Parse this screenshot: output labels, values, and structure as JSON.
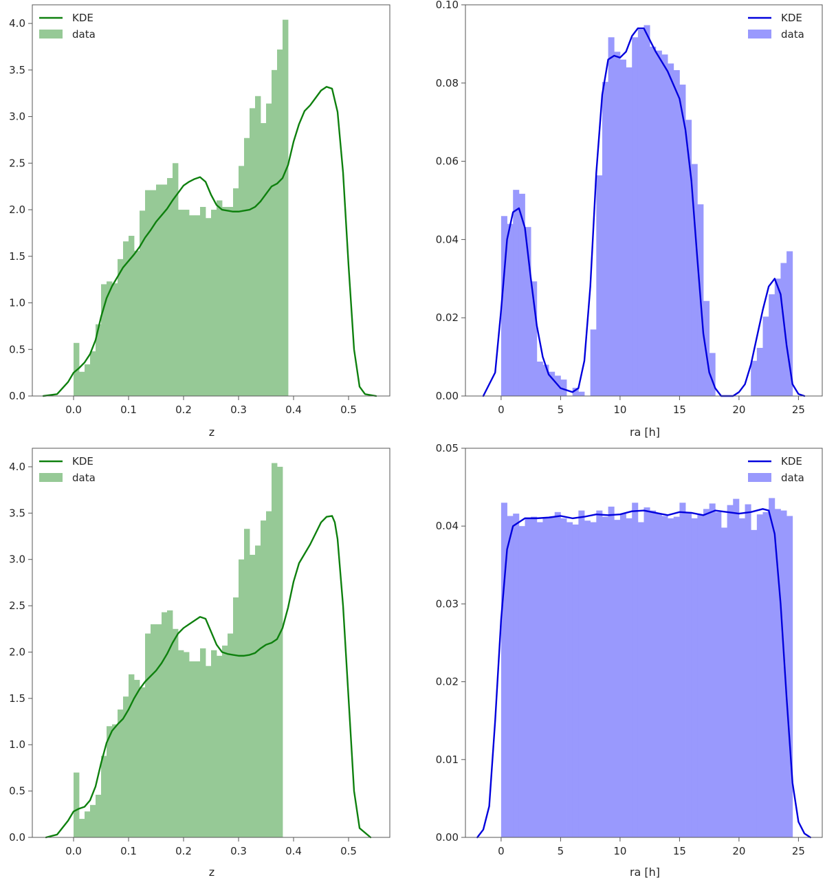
{
  "chart_data": [
    {
      "id": "top-left",
      "type": "bar",
      "xlabel": "z",
      "ylabel": "",
      "xlim": [
        -0.075,
        0.575
      ],
      "ylim": [
        0,
        4.2
      ],
      "xticks": [
        0.0,
        0.1,
        0.2,
        0.3,
        0.4,
        0.5
      ],
      "xtick_labels": [
        "0.0",
        "0.1",
        "0.2",
        "0.3",
        "0.4",
        "0.5"
      ],
      "yticks": [
        0.0,
        0.5,
        1.0,
        1.5,
        2.0,
        2.5,
        3.0,
        3.5,
        4.0
      ],
      "ytick_labels": [
        "0.0",
        "0.5",
        "1.0",
        "1.5",
        "2.0",
        "2.5",
        "3.0",
        "3.5",
        "4.0"
      ],
      "legend": {
        "position": "top-left",
        "entries": [
          {
            "label": "KDE",
            "kind": "line"
          },
          {
            "label": "data",
            "kind": "patch"
          }
        ]
      },
      "colors": {
        "bar": "#96c996",
        "line": "#0e800e"
      },
      "hist": {
        "bin_start": 0.0,
        "bin_width": 0.01,
        "values": [
          0.57,
          0.26,
          0.34,
          0.48,
          0.77,
          1.2,
          1.23,
          1.21,
          1.47,
          1.66,
          1.72,
          1.56,
          1.99,
          2.21,
          2.21,
          2.27,
          2.27,
          2.34,
          2.5,
          2.0,
          2.0,
          1.94,
          1.94,
          2.03,
          1.91,
          2.0,
          2.1,
          2.03,
          2.03,
          2.23,
          2.47,
          2.77,
          3.09,
          3.22,
          2.93,
          3.14,
          3.5,
          3.72,
          4.04,
          0.0
        ]
      },
      "series": [
        {
          "name": "KDE",
          "x": [
            -0.055,
            -0.03,
            -0.01,
            0.0,
            0.01,
            0.02,
            0.03,
            0.04,
            0.05,
            0.06,
            0.07,
            0.08,
            0.09,
            0.1,
            0.11,
            0.12,
            0.13,
            0.14,
            0.15,
            0.16,
            0.17,
            0.18,
            0.19,
            0.2,
            0.21,
            0.22,
            0.23,
            0.24,
            0.25,
            0.26,
            0.27,
            0.28,
            0.29,
            0.3,
            0.31,
            0.32,
            0.33,
            0.34,
            0.35,
            0.36,
            0.37,
            0.38,
            0.39,
            0.4,
            0.41,
            0.42,
            0.43,
            0.44,
            0.45,
            0.46,
            0.47,
            0.48,
            0.49,
            0.5,
            0.51,
            0.52,
            0.53,
            0.55
          ],
          "y": [
            0.0,
            0.02,
            0.15,
            0.25,
            0.3,
            0.36,
            0.45,
            0.6,
            0.85,
            1.05,
            1.18,
            1.28,
            1.38,
            1.45,
            1.52,
            1.6,
            1.7,
            1.78,
            1.87,
            1.94,
            2.01,
            2.1,
            2.18,
            2.26,
            2.3,
            2.33,
            2.35,
            2.3,
            2.16,
            2.05,
            2.0,
            1.99,
            1.98,
            1.98,
            1.99,
            2.0,
            2.03,
            2.09,
            2.17,
            2.25,
            2.28,
            2.34,
            2.48,
            2.73,
            2.92,
            3.06,
            3.12,
            3.2,
            3.28,
            3.32,
            3.3,
            3.05,
            2.4,
            1.4,
            0.5,
            0.1,
            0.02,
            0.0
          ]
        }
      ]
    },
    {
      "id": "top-right",
      "type": "bar",
      "xlabel": "ra [h]",
      "ylabel": "",
      "xlim": [
        -3.0,
        27.0
      ],
      "ylim": [
        0,
        0.1
      ],
      "xticks": [
        0,
        5,
        10,
        15,
        20,
        25
      ],
      "xtick_labels": [
        "0",
        "5",
        "10",
        "15",
        "20",
        "25"
      ],
      "yticks": [
        0.0,
        0.02,
        0.04,
        0.06,
        0.08,
        0.1
      ],
      "ytick_labels": [
        "0.00",
        "0.02",
        "0.04",
        "0.06",
        "0.08",
        "0.10"
      ],
      "legend": {
        "position": "top-right",
        "entries": [
          {
            "label": "KDE",
            "kind": "line"
          },
          {
            "label": "data",
            "kind": "patch"
          }
        ]
      },
      "colors": {
        "bar": "#9999fd",
        "line": "#0000dd"
      },
      "hist": {
        "bin_start": 0.0,
        "bin_width": 0.5,
        "values": [
          0.046,
          0.044,
          0.0527,
          0.0517,
          0.0432,
          0.0293,
          0.0088,
          0.008,
          0.0062,
          0.0052,
          0.0042,
          0.0,
          0.0021,
          0.0011,
          0.0,
          0.017,
          0.0564,
          0.0803,
          0.0917,
          0.088,
          0.086,
          0.084,
          0.0917,
          0.0937,
          0.0948,
          0.0893,
          0.0883,
          0.0873,
          0.085,
          0.0833,
          0.0796,
          0.0706,
          0.0593,
          0.049,
          0.0243,
          0.011,
          0.0,
          0.0,
          0.0,
          0.0,
          0.0,
          0.0,
          0.009,
          0.0123,
          0.0203,
          0.026,
          0.03,
          0.034,
          0.037,
          0.0
        ]
      },
      "series": [
        {
          "name": "KDE",
          "x": [
            -1.5,
            -0.5,
            0.0,
            0.5,
            1.0,
            1.5,
            2.0,
            2.5,
            3.0,
            3.5,
            4.0,
            5.0,
            6.0,
            6.5,
            7.0,
            7.5,
            8.0,
            8.5,
            9.0,
            9.5,
            10.0,
            10.5,
            11.0,
            11.5,
            12.0,
            12.5,
            13.0,
            14.0,
            15.0,
            15.5,
            16.0,
            16.5,
            17.0,
            17.5,
            18.0,
            18.5,
            19.0,
            19.5,
            20.0,
            20.5,
            21.0,
            21.5,
            22.0,
            22.5,
            23.0,
            23.5,
            24.0,
            24.5,
            25.0,
            25.5
          ],
          "y": [
            0.0,
            0.006,
            0.022,
            0.04,
            0.047,
            0.048,
            0.043,
            0.03,
            0.018,
            0.01,
            0.0055,
            0.002,
            0.001,
            0.002,
            0.009,
            0.028,
            0.057,
            0.077,
            0.086,
            0.087,
            0.0865,
            0.088,
            0.092,
            0.094,
            0.094,
            0.091,
            0.088,
            0.083,
            0.076,
            0.068,
            0.055,
            0.035,
            0.016,
            0.006,
            0.002,
            0.0,
            0.0,
            0.0,
            0.001,
            0.003,
            0.008,
            0.015,
            0.022,
            0.028,
            0.03,
            0.026,
            0.013,
            0.003,
            0.0005,
            0.0
          ]
        }
      ]
    },
    {
      "id": "bottom-left",
      "type": "bar",
      "xlabel": "z",
      "ylabel": "",
      "xlim": [
        -0.075,
        0.575
      ],
      "ylim": [
        0,
        4.2
      ],
      "xticks": [
        0.0,
        0.1,
        0.2,
        0.3,
        0.4,
        0.5
      ],
      "xtick_labels": [
        "0.0",
        "0.1",
        "0.2",
        "0.3",
        "0.4",
        "0.5"
      ],
      "yticks": [
        0.0,
        0.5,
        1.0,
        1.5,
        2.0,
        2.5,
        3.0,
        3.5,
        4.0
      ],
      "ytick_labels": [
        "0.0",
        "0.5",
        "1.0",
        "1.5",
        "2.0",
        "2.5",
        "3.0",
        "3.5",
        "4.0"
      ],
      "legend": {
        "position": "top-left",
        "entries": [
          {
            "label": "KDE",
            "kind": "line"
          },
          {
            "label": "data",
            "kind": "patch"
          }
        ]
      },
      "colors": {
        "bar": "#96c996",
        "line": "#0e800e"
      },
      "hist": {
        "bin_start": 0.0,
        "bin_width": 0.01,
        "values": [
          0.7,
          0.2,
          0.28,
          0.35,
          0.46,
          0.88,
          1.2,
          1.22,
          1.38,
          1.52,
          1.76,
          1.7,
          1.62,
          2.2,
          2.3,
          2.3,
          2.43,
          2.45,
          2.25,
          2.02,
          2.0,
          1.9,
          1.9,
          2.04,
          1.85,
          2.02,
          1.96,
          2.07,
          2.2,
          2.59,
          3.0,
          3.33,
          3.05,
          3.15,
          3.42,
          3.52,
          4.04,
          4.0,
          0.0,
          0.0
        ]
      },
      "series": [
        {
          "name": "KDE",
          "x": [
            -0.05,
            -0.03,
            -0.01,
            0.0,
            0.01,
            0.02,
            0.03,
            0.04,
            0.05,
            0.06,
            0.07,
            0.08,
            0.09,
            0.1,
            0.11,
            0.12,
            0.13,
            0.14,
            0.15,
            0.16,
            0.17,
            0.18,
            0.19,
            0.2,
            0.21,
            0.22,
            0.23,
            0.24,
            0.25,
            0.26,
            0.27,
            0.28,
            0.29,
            0.3,
            0.31,
            0.32,
            0.33,
            0.34,
            0.35,
            0.36,
            0.37,
            0.38,
            0.39,
            0.4,
            0.41,
            0.42,
            0.43,
            0.44,
            0.45,
            0.46,
            0.47,
            0.475,
            0.48,
            0.49,
            0.5,
            0.51,
            0.52,
            0.54
          ],
          "y": [
            0.0,
            0.03,
            0.18,
            0.28,
            0.31,
            0.33,
            0.4,
            0.55,
            0.8,
            1.02,
            1.15,
            1.22,
            1.28,
            1.38,
            1.5,
            1.6,
            1.68,
            1.74,
            1.8,
            1.88,
            1.98,
            2.1,
            2.2,
            2.26,
            2.3,
            2.34,
            2.38,
            2.36,
            2.22,
            2.08,
            2.0,
            1.98,
            1.97,
            1.96,
            1.96,
            1.97,
            1.99,
            2.04,
            2.08,
            2.1,
            2.14,
            2.26,
            2.48,
            2.76,
            2.96,
            3.06,
            3.16,
            3.28,
            3.4,
            3.46,
            3.47,
            3.4,
            3.22,
            2.5,
            1.5,
            0.5,
            0.1,
            0.0
          ]
        }
      ]
    },
    {
      "id": "bottom-right",
      "type": "bar",
      "xlabel": "ra [h]",
      "ylabel": "",
      "xlim": [
        -3.0,
        27.0
      ],
      "ylim": [
        0,
        0.05
      ],
      "xticks": [
        0,
        5,
        10,
        15,
        20,
        25
      ],
      "xtick_labels": [
        "0",
        "5",
        "10",
        "15",
        "20",
        "25"
      ],
      "yticks": [
        0.0,
        0.01,
        0.02,
        0.03,
        0.04,
        0.05
      ],
      "ytick_labels": [
        "0.00",
        "0.01",
        "0.02",
        "0.03",
        "0.04",
        "0.05"
      ],
      "legend": {
        "position": "top-right",
        "entries": [
          {
            "label": "KDE",
            "kind": "line"
          },
          {
            "label": "data",
            "kind": "patch"
          }
        ]
      },
      "colors": {
        "bar": "#9999fd",
        "line": "#0000dd"
      },
      "hist": {
        "bin_start": 0.0,
        "bin_width": 0.5,
        "values": [
          0.043,
          0.0413,
          0.0416,
          0.04,
          0.041,
          0.0412,
          0.0405,
          0.041,
          0.0412,
          0.0418,
          0.041,
          0.0405,
          0.0402,
          0.042,
          0.0407,
          0.0405,
          0.042,
          0.0412,
          0.0425,
          0.0408,
          0.0416,
          0.041,
          0.043,
          0.0405,
          0.0424,
          0.042,
          0.0416,
          0.0413,
          0.041,
          0.0412,
          0.043,
          0.0418,
          0.041,
          0.0415,
          0.0422,
          0.0429,
          0.0418,
          0.0398,
          0.0427,
          0.0435,
          0.041,
          0.0428,
          0.0395,
          0.0415,
          0.0418,
          0.0436,
          0.0422,
          0.042,
          0.0413,
          0.0
        ]
      },
      "series": [
        {
          "name": "KDE",
          "x": [
            -2.0,
            -1.5,
            -1.0,
            -0.5,
            0.0,
            0.5,
            1.0,
            2.0,
            3.0,
            4.0,
            5.0,
            6.0,
            7.0,
            8.0,
            9.0,
            10.0,
            11.0,
            12.0,
            13.0,
            14.0,
            15.0,
            16.0,
            17.0,
            18.0,
            19.0,
            20.0,
            21.0,
            22.0,
            22.5,
            23.0,
            23.5,
            24.0,
            24.5,
            25.0,
            25.5,
            26.0
          ],
          "y": [
            0.0,
            0.001,
            0.004,
            0.015,
            0.028,
            0.037,
            0.04,
            0.041,
            0.041,
            0.0411,
            0.0413,
            0.041,
            0.0412,
            0.0415,
            0.0414,
            0.0415,
            0.0419,
            0.042,
            0.0417,
            0.0414,
            0.0418,
            0.0417,
            0.0414,
            0.042,
            0.0418,
            0.0416,
            0.0418,
            0.0422,
            0.042,
            0.039,
            0.03,
            0.018,
            0.007,
            0.002,
            0.0005,
            0.0
          ]
        }
      ]
    }
  ]
}
